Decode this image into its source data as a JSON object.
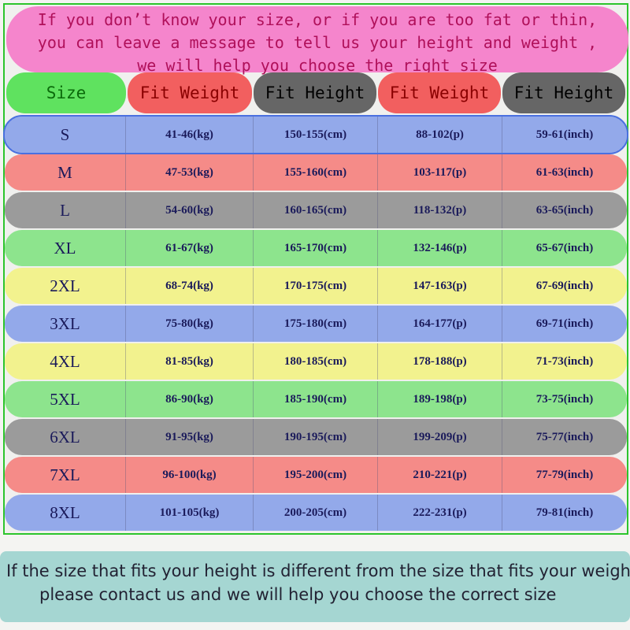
{
  "banner": {
    "lines": [
      "If you don’t know your size, or if you are too fat or thin,",
      "you can leave a message to tell us your height and weight ,",
      "we will help you choose the right size"
    ]
  },
  "headers": [
    "Size",
    "Fit Weight",
    "Fit Height",
    "Fit Weight",
    "Fit Height"
  ],
  "colors": {
    "blue": "#93a9ea",
    "salmon": "#f58b88",
    "gray": "#9b9b9b",
    "green": "#8de48d",
    "yellow": "#f2f28e",
    "frame": "#2cc52c",
    "banner": "#f585cc",
    "footer": "#a5d6d2"
  },
  "rows": [
    {
      "size": "S",
      "kg": "41-46(kg)",
      "cm": "150-155(cm)",
      "p": "88-102(p)",
      "inch": "59-61(inch)",
      "color": "blue"
    },
    {
      "size": "M",
      "kg": "47-53(kg)",
      "cm": "155-160(cm)",
      "p": "103-117(p)",
      "inch": "61-63(inch)",
      "color": "salmon"
    },
    {
      "size": "L",
      "kg": "54-60(kg)",
      "cm": "160-165(cm)",
      "p": "118-132(p)",
      "inch": "63-65(inch)",
      "color": "gray"
    },
    {
      "size": "XL",
      "kg": "61-67(kg)",
      "cm": "165-170(cm)",
      "p": "132-146(p)",
      "inch": "65-67(inch)",
      "color": "green"
    },
    {
      "size": "2XL",
      "kg": "68-74(kg)",
      "cm": "170-175(cm)",
      "p": "147-163(p)",
      "inch": "67-69(inch)",
      "color": "yellow"
    },
    {
      "size": "3XL",
      "kg": "75-80(kg)",
      "cm": "175-180(cm)",
      "p": "164-177(p)",
      "inch": "69-71(inch)",
      "color": "blue"
    },
    {
      "size": "4XL",
      "kg": "81-85(kg)",
      "cm": "180-185(cm)",
      "p": "178-188(p)",
      "inch": "71-73(inch)",
      "color": "yellow"
    },
    {
      "size": "5XL",
      "kg": "86-90(kg)",
      "cm": "185-190(cm)",
      "p": "189-198(p)",
      "inch": "73-75(inch)",
      "color": "green"
    },
    {
      "size": "6XL",
      "kg": "91-95(kg)",
      "cm": "190-195(cm)",
      "p": "199-209(p)",
      "inch": "75-77(inch)",
      "color": "gray"
    },
    {
      "size": "7XL",
      "kg": "96-100(kg)",
      "cm": "195-200(cm)",
      "p": "210-221(p)",
      "inch": "77-79(inch)",
      "color": "salmon"
    },
    {
      "size": "8XL",
      "kg": "101-105(kg)",
      "cm": "200-205(cm)",
      "p": "222-231(p)",
      "inch": "79-81(inch)",
      "color": "blue"
    }
  ],
  "footer": {
    "line1": "If the size that fits your height is different from the size that fits your weigh",
    "line2": "please contact us and we will help you choose the correct size"
  }
}
